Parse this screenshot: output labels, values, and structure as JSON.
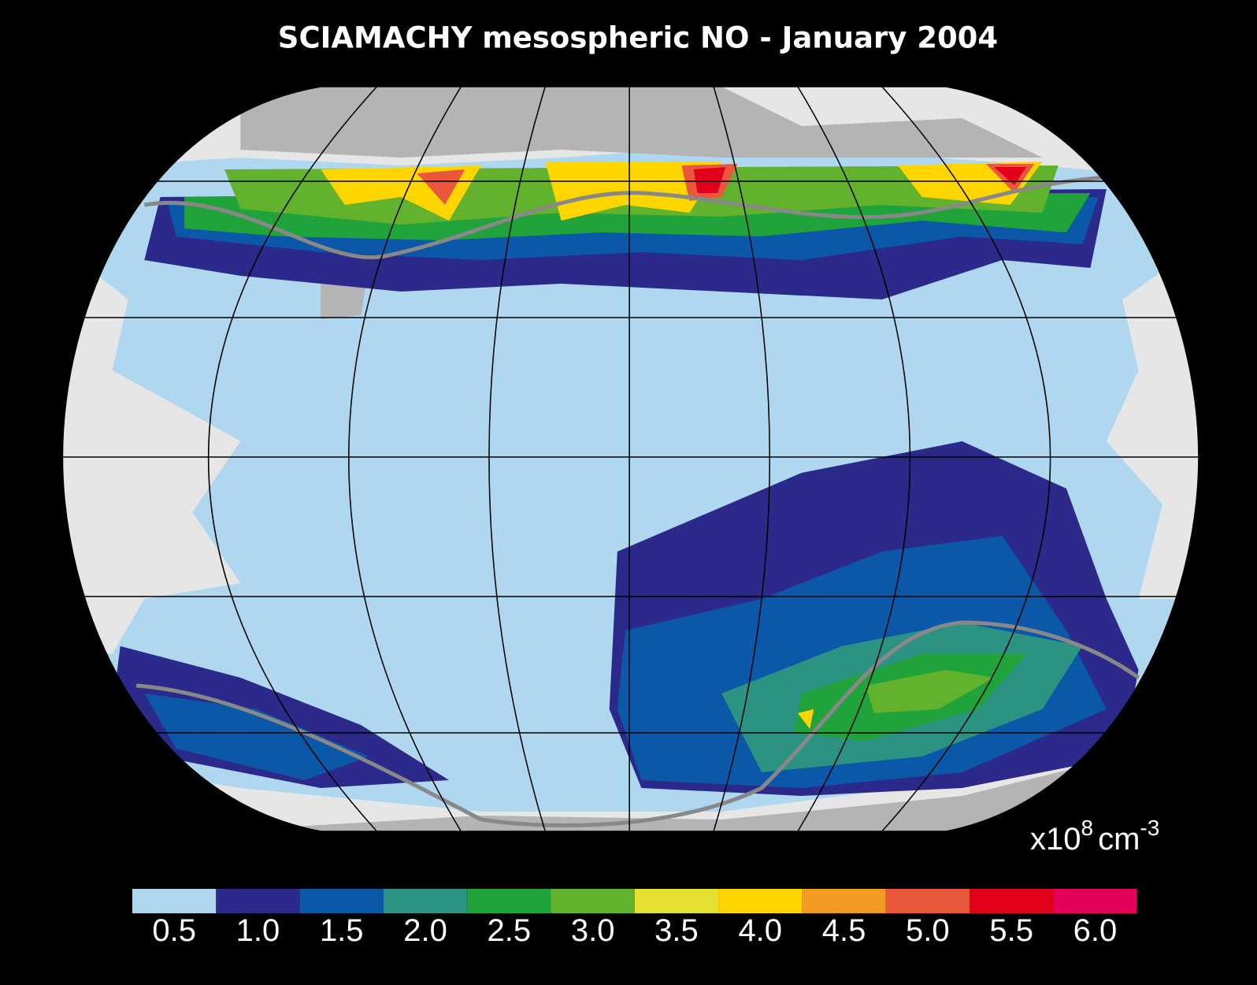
{
  "map": {
    "title": "SCIAMACHY mesospheric NO - January 2004",
    "unit": {
      "base": "x10",
      "exponent": "8",
      "unit": "cm",
      "unit_exponent": "-3"
    },
    "colorbar": {
      "levels": [
        {
          "value": 0.5,
          "label": "0.5",
          "color": "#afd8f0"
        },
        {
          "value": 1,
          "label": "1.0",
          "color": "#2b2a8a"
        },
        {
          "value": 1.5,
          "label": "1.5",
          "color": "#0b58a8"
        },
        {
          "value": 2,
          "label": "2.0",
          "color": "#2c9382"
        },
        {
          "value": 2.5,
          "label": "2.5",
          "color": "#1fa33a"
        },
        {
          "value": 3,
          "label": "3.0",
          "color": "#63b22e"
        },
        {
          "value": 3.5,
          "label": "3.5",
          "color": "#e6e032"
        },
        {
          "value": 4,
          "label": "4.0",
          "color": "#ffd500"
        },
        {
          "value": 4.5,
          "label": "4.5",
          "color": "#f39a22"
        },
        {
          "value": 5,
          "label": "5.0",
          "color": "#e9583a"
        },
        {
          "value": 5.5,
          "label": "5.5",
          "color": "#e2001a"
        },
        {
          "value": 6,
          "label": "6.0",
          "color": "#e2005a"
        }
      ]
    }
  }
}
